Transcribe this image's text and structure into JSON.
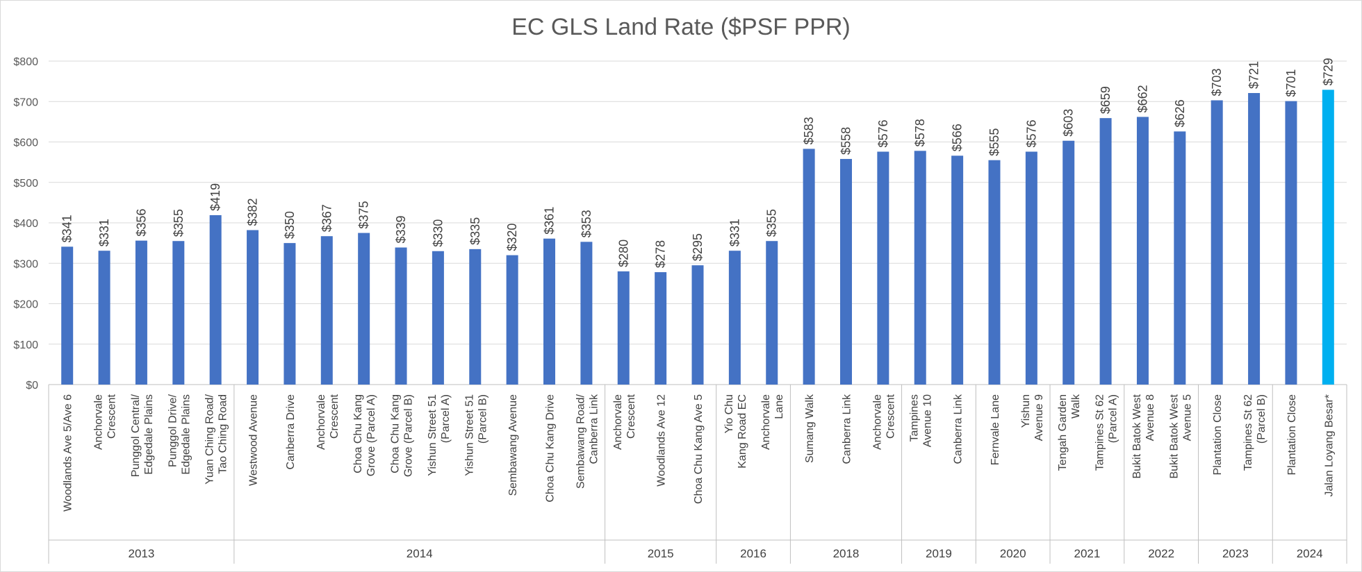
{
  "chart_data": {
    "type": "bar",
    "title": "EC GLS Land Rate ($PSF PPR)",
    "xlabel": "",
    "ylabel": "",
    "ylim": [
      0,
      800
    ],
    "yticks": [
      0,
      100,
      200,
      300,
      400,
      500,
      600,
      700,
      800
    ],
    "ytick_labels": [
      "$0",
      "$100",
      "$200",
      "$300",
      "$400",
      "$500",
      "$600",
      "$700",
      "$800"
    ],
    "grid": true,
    "legend": "none",
    "bar_color": "#4472C4",
    "highlight_color": "#00B0F0",
    "categories": [
      {
        "label": [
          "Woodlands Ave 5/Ave 6"
        ],
        "year": "2013",
        "value": 341,
        "data_label": "$341"
      },
      {
        "label": [
          "Anchorvale",
          "Crescent"
        ],
        "year": "2013",
        "value": 331,
        "data_label": "$331"
      },
      {
        "label": [
          "Punggol Central/",
          "Edgedale Plains"
        ],
        "year": "2013",
        "value": 356,
        "data_label": "$356"
      },
      {
        "label": [
          "Punggol Drive/",
          "Edgedale Plains"
        ],
        "year": "2013",
        "value": 355,
        "data_label": "$355"
      },
      {
        "label": [
          "Yuan Ching Road/",
          "Tao Ching Road"
        ],
        "year": "2013",
        "value": 419,
        "data_label": "$419"
      },
      {
        "label": [
          "Westwood Avenue"
        ],
        "year": "2014",
        "value": 382,
        "data_label": "$382"
      },
      {
        "label": [
          "Canberra Drive"
        ],
        "year": "2014",
        "value": 350,
        "data_label": "$350"
      },
      {
        "label": [
          "Anchorvale",
          "Crescent"
        ],
        "year": "2014",
        "value": 367,
        "data_label": "$367"
      },
      {
        "label": [
          "Choa Chu Kang",
          "Grove (Parcel A)"
        ],
        "year": "2014",
        "value": 375,
        "data_label": "$375"
      },
      {
        "label": [
          "Choa Chu Kang",
          "Grove (Parcel B)"
        ],
        "year": "2014",
        "value": 339,
        "data_label": "$339"
      },
      {
        "label": [
          "Yishun Street 51",
          "(Parcel A)"
        ],
        "year": "2014",
        "value": 330,
        "data_label": "$330"
      },
      {
        "label": [
          "Yishun Street 51",
          "(Parcel B)"
        ],
        "year": "2014",
        "value": 335,
        "data_label": "$335"
      },
      {
        "label": [
          "Sembawang Avenue"
        ],
        "year": "2014",
        "value": 320,
        "data_label": "$320"
      },
      {
        "label": [
          "Choa Chu Kang Drive"
        ],
        "year": "2014",
        "value": 361,
        "data_label": "$361"
      },
      {
        "label": [
          "Sembawang Road/",
          "Canberra Link"
        ],
        "year": "2014",
        "value": 353,
        "data_label": "$353"
      },
      {
        "label": [
          "Anchorvale",
          "Crescent"
        ],
        "year": "2015",
        "value": 280,
        "data_label": "$280"
      },
      {
        "label": [
          "Woodlands Ave 12"
        ],
        "year": "2015",
        "value": 278,
        "data_label": "$278"
      },
      {
        "label": [
          "Choa Chu Kang Ave 5"
        ],
        "year": "2015",
        "value": 295,
        "data_label": "$295"
      },
      {
        "label": [
          "Yio Chu",
          "Kang Road EC"
        ],
        "year": "2016",
        "value": 331,
        "data_label": "$331"
      },
      {
        "label": [
          "Anchorvale",
          "Lane"
        ],
        "year": "2016",
        "value": 355,
        "data_label": "$355"
      },
      {
        "label": [
          "Sumang Walk"
        ],
        "year": "2018",
        "value": 583,
        "data_label": "$583"
      },
      {
        "label": [
          "Canberra Link"
        ],
        "year": "2018",
        "value": 558,
        "data_label": "$558"
      },
      {
        "label": [
          "Anchorvale",
          "Crescent"
        ],
        "year": "2018",
        "value": 576,
        "data_label": "$576"
      },
      {
        "label": [
          "Tampines",
          "Avenue 10"
        ],
        "year": "2019",
        "value": 578,
        "data_label": "$578"
      },
      {
        "label": [
          "Canberra Link"
        ],
        "year": "2019",
        "value": 566,
        "data_label": "$566"
      },
      {
        "label": [
          "Fernvale Lane"
        ],
        "year": "2020",
        "value": 555,
        "data_label": "$555"
      },
      {
        "label": [
          "Yishun",
          "Avenue 9"
        ],
        "year": "2020",
        "value": 576,
        "data_label": "$576"
      },
      {
        "label": [
          "Tengah Garden",
          "Walk"
        ],
        "year": "2021",
        "value": 603,
        "data_label": "$603"
      },
      {
        "label": [
          "Tampines St 62",
          "(Parcel A)"
        ],
        "year": "2021",
        "value": 659,
        "data_label": "$659"
      },
      {
        "label": [
          "Bukit Batok West",
          "Avenue 8"
        ],
        "year": "2022",
        "value": 662,
        "data_label": "$662"
      },
      {
        "label": [
          "Bukit Batok West",
          "Avenue 5"
        ],
        "year": "2022",
        "value": 626,
        "data_label": "$626"
      },
      {
        "label": [
          "Plantation Close"
        ],
        "year": "2023",
        "value": 703,
        "data_label": "$703"
      },
      {
        "label": [
          "Tampines St 62",
          "(Parcel B)"
        ],
        "year": "2023",
        "value": 721,
        "data_label": "$721"
      },
      {
        "label": [
          "Plantation Close"
        ],
        "year": "2024",
        "value": 701,
        "data_label": "$701"
      },
      {
        "label": [
          "Jalan Loyang Besar*"
        ],
        "year": "2024",
        "value": 729,
        "data_label": "$729",
        "highlight": true
      }
    ],
    "year_groups": [
      "2013",
      "2014",
      "2015",
      "2016",
      "2018",
      "2019",
      "2020",
      "2021",
      "2022",
      "2023",
      "2024"
    ]
  }
}
